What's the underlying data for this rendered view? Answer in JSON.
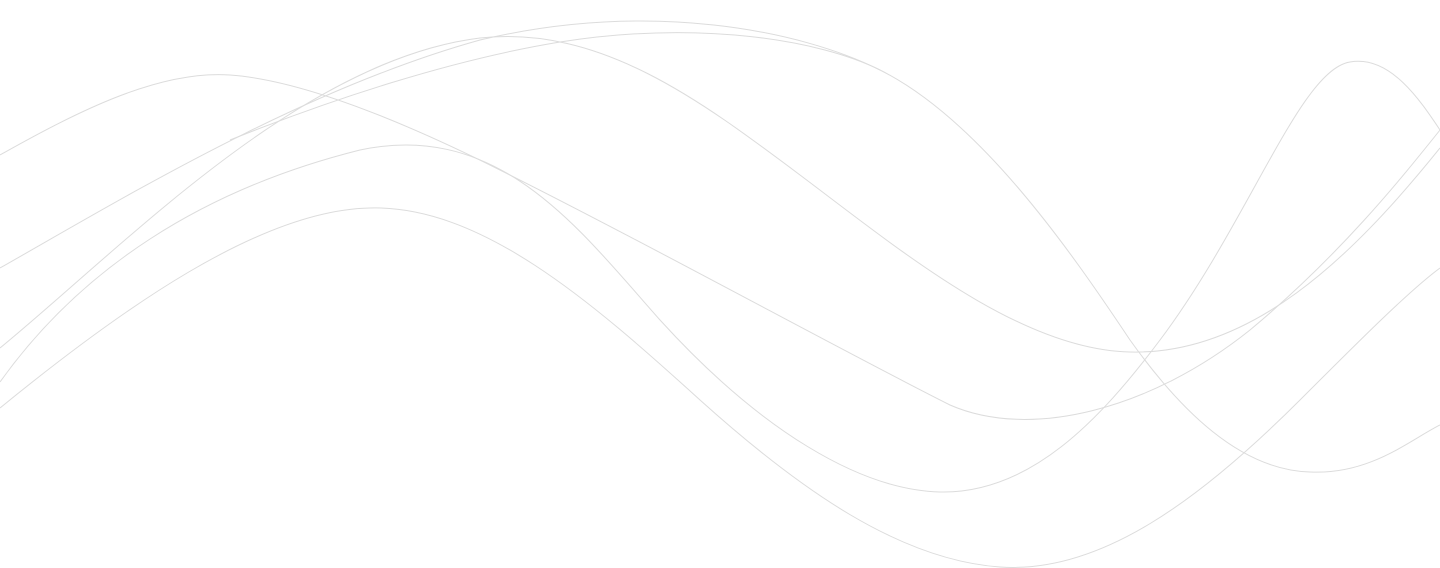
{
  "colors": {
    "background": "#ffffff",
    "wave_line": "#dcdcdc"
  },
  "decoration": {
    "type": "abstract-wave-lines",
    "line_count": 6
  }
}
